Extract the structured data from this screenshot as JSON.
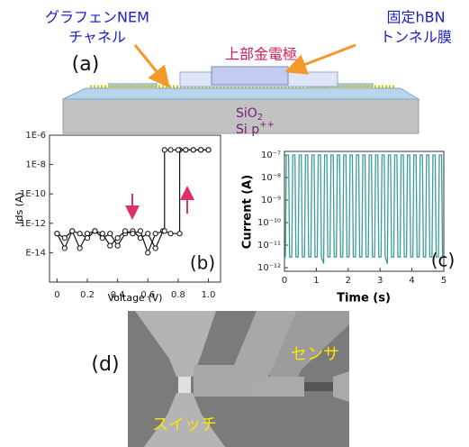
{
  "panel_a": {
    "label": "(a)",
    "graphene_label": [
      "グラフェンNEM",
      "チャネル"
    ],
    "electrode_label": "上部金電極",
    "hbn_label": [
      "固定hBN",
      "トンネル膜"
    ],
    "oxide_label": "SiO",
    "oxide_subscript": "2",
    "substrate_label": "Si p",
    "substrate_superscript": "++"
  },
  "chart_data": [
    {
      "type": "line",
      "panel_label": "(b)",
      "x_label": "Voltage (V)",
      "y_label": "Ids (A)",
      "log_y": true,
      "markers": true,
      "xlim": [
        -0.05,
        1.08
      ],
      "ylim": [
        1e-16,
        1e-06
      ],
      "xticks": [
        0,
        0.2,
        0.4,
        0.6,
        0.8,
        {
          "value": 1,
          "label": "1.0"
        }
      ],
      "yticks": [
        {
          "value": 1e-06,
          "label": "1E-6"
        },
        {
          "value": 1e-08,
          "label": "1E-8"
        },
        {
          "value": 1e-10,
          "label": "1E-10"
        },
        {
          "value": 1e-12,
          "label": "1E-12"
        },
        {
          "value": 1e-14,
          "label": "E-14"
        }
      ],
      "series": [
        {
          "color": "#111111",
          "x": [
            0,
            0.05,
            0.1,
            0.15,
            0.2,
            0.25,
            0.3,
            0.35,
            0.4,
            0.45,
            0.5,
            0.55,
            0.6,
            0.65,
            0.7,
            0.75,
            0.81,
            0.81,
            0.85,
            0.9,
            0.95,
            1.0
          ],
          "values": [
            2e-13,
            1e-13,
            3e-13,
            2e-14,
            2e-13,
            3e-13,
            1e-13,
            2e-13,
            3e-14,
            2e-13,
            3e-13,
            1e-13,
            2e-13,
            2e-14,
            3e-13,
            2e-13,
            2e-13,
            1e-07,
            1e-07,
            1e-07,
            1e-07,
            1e-07
          ]
        },
        {
          "color": "#111111",
          "x": [
            1.0,
            0.95,
            0.9,
            0.85,
            0.8,
            0.75,
            0.71,
            0.71,
            0.65,
            0.6,
            0.55,
            0.5,
            0.45,
            0.4,
            0.35,
            0.3,
            0.25,
            0.2,
            0.15,
            0.1,
            0.05,
            0
          ],
          "values": [
            1e-07,
            1e-07,
            1e-07,
            1e-07,
            1e-07,
            1e-07,
            1e-07,
            3e-13,
            2e-13,
            1e-14,
            3e-13,
            2e-13,
            3e-13,
            1e-13,
            3e-14,
            2e-13,
            3e-13,
            1e-13,
            2e-13,
            3e-13,
            2e-14,
            2e-13
          ]
        }
      ]
    },
    {
      "type": "line",
      "panel_label": "(c)",
      "x_label": "Time (s)",
      "y_label": "Current (A)",
      "log_y": true,
      "xlim": [
        0,
        5
      ],
      "ylim": [
        1e-12,
        1e-07
      ],
      "xticks": [
        0,
        1,
        2,
        3,
        4,
        5
      ],
      "yticks": [
        {
          "value": 1e-07,
          "label": "10⁻⁷"
        },
        {
          "value": 1e-08,
          "label": "10⁻⁸"
        },
        {
          "value": 1e-09,
          "label": "10⁻⁹"
        },
        {
          "value": 1e-10,
          "label": "10⁻¹⁰"
        },
        {
          "value": 1e-11,
          "label": "10⁻¹¹"
        },
        {
          "value": 1e-12,
          "label": "10⁻¹²"
        }
      ],
      "series": [
        {
          "color": "#3a9e96",
          "x": [
            0,
            0.03,
            0.06,
            0.13,
            0.16,
            0.23,
            0.26,
            0.33,
            0.36,
            0.43,
            0.46,
            0.53,
            0.56,
            0.63,
            0.66,
            0.73,
            0.76,
            0.83,
            0.86,
            0.93,
            0.96,
            1.03,
            1.06,
            1.13,
            1.16,
            1.23,
            1.26,
            1.33,
            1.36,
            1.43,
            1.46,
            1.53,
            1.56,
            1.63,
            1.66,
            1.73,
            1.76,
            1.83,
            1.86,
            1.93,
            1.96,
            2.03,
            2.06,
            2.13,
            2.16,
            2.23,
            2.26,
            2.33,
            2.36,
            2.43,
            2.46,
            2.53,
            2.56,
            2.63,
            2.66,
            2.73,
            2.76,
            2.83,
            2.86,
            2.93,
            2.96,
            3.03,
            3.06,
            3.13,
            3.16,
            3.23,
            3.26,
            3.33,
            3.36,
            3.43,
            3.46,
            3.53,
            3.56,
            3.63,
            3.66,
            3.73,
            3.76,
            3.83,
            3.86,
            3.93,
            3.96,
            4.03,
            4.06,
            4.13,
            4.16,
            4.23,
            4.26,
            4.33,
            4.36,
            4.43,
            4.46,
            4.53,
            4.56,
            4.63,
            4.66,
            4.73,
            4.76,
            4.83,
            4.86,
            4.93,
            4.96,
            5
          ],
          "values": [
            3e-12,
            3e-12,
            1e-07,
            1e-07,
            3e-12,
            3e-12,
            1e-07,
            1e-07,
            3e-12,
            3e-12,
            1e-07,
            1e-07,
            3e-12,
            3e-12,
            1e-07,
            1e-07,
            3e-12,
            3e-12,
            1e-07,
            1e-07,
            3e-12,
            3e-12,
            1e-07,
            1e-07,
            3e-12,
            1.5e-12,
            1e-07,
            1e-07,
            3e-12,
            3e-12,
            1e-07,
            1e-07,
            3e-12,
            3e-12,
            1e-07,
            1e-07,
            3e-12,
            3e-12,
            1e-07,
            1e-07,
            3e-12,
            3e-12,
            1e-07,
            1e-07,
            3e-12,
            3e-12,
            1e-07,
            1e-07,
            3e-12,
            3e-12,
            1e-07,
            1e-07,
            3e-12,
            3e-12,
            1e-07,
            1e-07,
            3e-12,
            3e-12,
            1e-07,
            1e-07,
            3e-12,
            3e-12,
            1e-07,
            1e-07,
            3e-12,
            1.5e-12,
            1e-07,
            1e-07,
            3e-12,
            3e-12,
            1e-07,
            1e-07,
            3e-12,
            3e-12,
            1e-07,
            1e-07,
            3e-12,
            3e-12,
            1e-07,
            1e-07,
            3e-12,
            3e-12,
            1e-07,
            1e-07,
            3e-12,
            3e-12,
            1e-07,
            1e-07,
            3e-12,
            3e-12,
            1e-07,
            1e-07,
            3e-12,
            3e-12,
            1e-07,
            1e-07,
            3e-12,
            3e-12,
            1e-07,
            1e-07,
            3e-12,
            3e-12
          ]
        }
      ]
    }
  ],
  "panel_d": {
    "label": "(d)",
    "sensor_label": "センサ",
    "switch_label": "スイッチ"
  }
}
